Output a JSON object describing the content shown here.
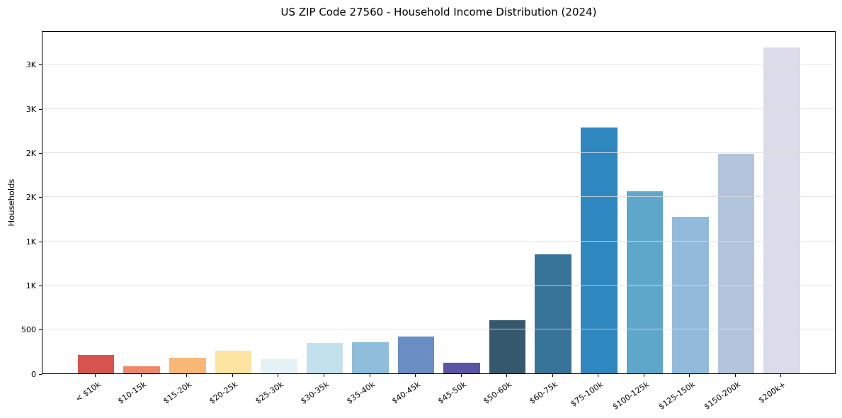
{
  "chart_data": {
    "type": "bar",
    "title": "US ZIP Code 27560 - Household Income Distribution (2024)",
    "xlabel": "",
    "ylabel": "Households",
    "categories": [
      "< $10k",
      "$10-15k",
      "$15-20k",
      "$20-25k",
      "$25-30k",
      "$30-35k",
      "$35-40k",
      "$40-45k",
      "$45-50k",
      "$50-60k",
      "$60-75k",
      "$75-100k",
      "$100-125k",
      "$125-150k",
      "$150-200k",
      "$200k+"
    ],
    "values": [
      210,
      80,
      175,
      260,
      160,
      345,
      355,
      415,
      120,
      605,
      1345,
      2785,
      2060,
      1770,
      2485,
      3690
    ],
    "bar_colors": [
      "#d6544d",
      "#f08767",
      "#fab876",
      "#fde4a1",
      "#e6f1f6",
      "#c3e0ed",
      "#90bddc",
      "#6a8dc3",
      "#5a54a4",
      "#35596c",
      "#38739a",
      "#2f87c0",
      "#5fa6cb",
      "#92badb",
      "#b2c5dd",
      "#dadce9"
    ],
    "ylim": [
      0,
      3884
    ],
    "ytick_values": [
      0,
      500,
      1000,
      1500,
      2000,
      2500,
      3000,
      3500
    ],
    "ytick_labels": [
      "0",
      "500",
      "1K",
      "1K",
      "2K",
      "2K",
      "3K",
      "3K"
    ],
    "grid": "horizontal-over-bars",
    "grid_color": "#dedede",
    "spine_color": "#000000",
    "background_color": "#ffffff",
    "legend": "none"
  }
}
